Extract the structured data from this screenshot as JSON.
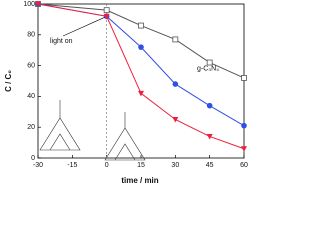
{
  "chart_data": {
    "type": "line",
    "x_label": "time / min",
    "y_label": "C / C₀",
    "x": [
      -30,
      0,
      15,
      30,
      45,
      60
    ],
    "series": [
      {
        "name": "g-C₃N₄",
        "color": "#555555",
        "marker": "square-open",
        "values": [
          100,
          96,
          86,
          77,
          62,
          52
        ]
      },
      {
        "color": "#2f4fe6",
        "marker": "circle",
        "values": [
          100,
          92,
          72,
          48,
          34,
          21
        ]
      },
      {
        "color": "#ee1f3c",
        "marker": "triangle-down",
        "values": [
          100,
          92,
          42,
          25,
          14,
          6
        ]
      }
    ],
    "annotations": [
      "light on"
    ],
    "reference_line_x": 0,
    "xlim": [
      -30,
      60
    ],
    "xticks": [
      -30,
      -15,
      0,
      15,
      30,
      45,
      60
    ],
    "ylim": [
      0,
      100
    ],
    "yticks": [
      0,
      20,
      40,
      60,
      80,
      100
    ]
  }
}
